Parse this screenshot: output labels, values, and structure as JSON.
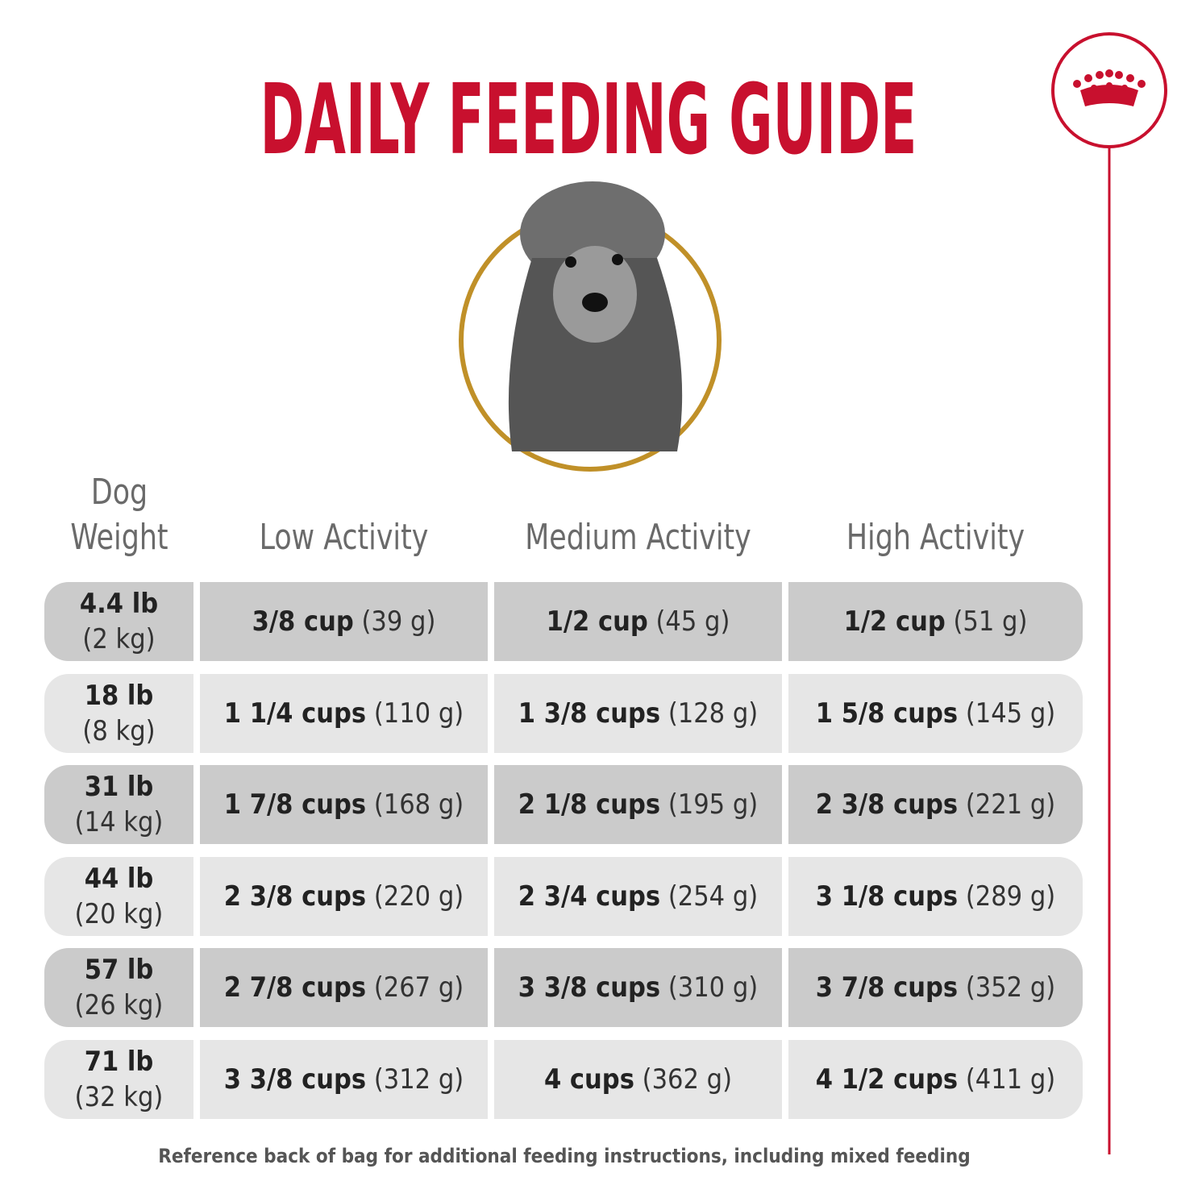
{
  "header": {
    "title": "DAILY FEEDING GUIDE"
  },
  "table": {
    "columns": [
      "Dog Weight",
      "Low Activity",
      "Medium Activity",
      "High Activity"
    ],
    "rows": [
      {
        "weight": "4.4 lb",
        "weight_metric": "(2 kg)",
        "cells": [
          {
            "amount": "3/8 cup",
            "grams": "(39 g)"
          },
          {
            "amount": "1/2 cup",
            "grams": "(45 g)"
          },
          {
            "amount": "1/2 cup",
            "grams": "(51 g)"
          }
        ]
      },
      {
        "weight": "18 lb",
        "weight_metric": "(8 kg)",
        "cells": [
          {
            "amount": "1 1/4 cups",
            "grams": "(110 g)"
          },
          {
            "amount": "1 3/8 cups",
            "grams": "(128 g)"
          },
          {
            "amount": "1 5/8 cups",
            "grams": "(145 g)"
          }
        ]
      },
      {
        "weight": "31 lb",
        "weight_metric": "(14 kg)",
        "cells": [
          {
            "amount": "1 7/8 cups",
            "grams": "(168 g)"
          },
          {
            "amount": "2 1/8 cups",
            "grams": "(195 g)"
          },
          {
            "amount": "2 3/8 cups",
            "grams": "(221 g)"
          }
        ]
      },
      {
        "weight": "44 lb",
        "weight_metric": "(20 kg)",
        "cells": [
          {
            "amount": "2 3/8 cups",
            "grams": "(220 g)"
          },
          {
            "amount": "2 3/4 cups",
            "grams": "(254 g)"
          },
          {
            "amount": "3 1/8 cups",
            "grams": "(289 g)"
          }
        ]
      },
      {
        "weight": "57 lb",
        "weight_metric": "(26 kg)",
        "cells": [
          {
            "amount": "2 7/8 cups",
            "grams": "(267 g)"
          },
          {
            "amount": "3 3/8 cups",
            "grams": "(310 g)"
          },
          {
            "amount": "3 7/8 cups",
            "grams": "(352 g)"
          }
        ]
      },
      {
        "weight": "71 lb",
        "weight_metric": "(32 kg)",
        "cells": [
          {
            "amount": "3 3/8 cups",
            "grams": "(312 g)"
          },
          {
            "amount": "4 cups",
            "grams": "(362 g)"
          },
          {
            "amount": "4 1/2 cups",
            "grams": "(411 g)"
          }
        ]
      }
    ]
  },
  "footer": {
    "note": "Reference back of bag for additional feeding instructions, including mixed feeding"
  }
}
